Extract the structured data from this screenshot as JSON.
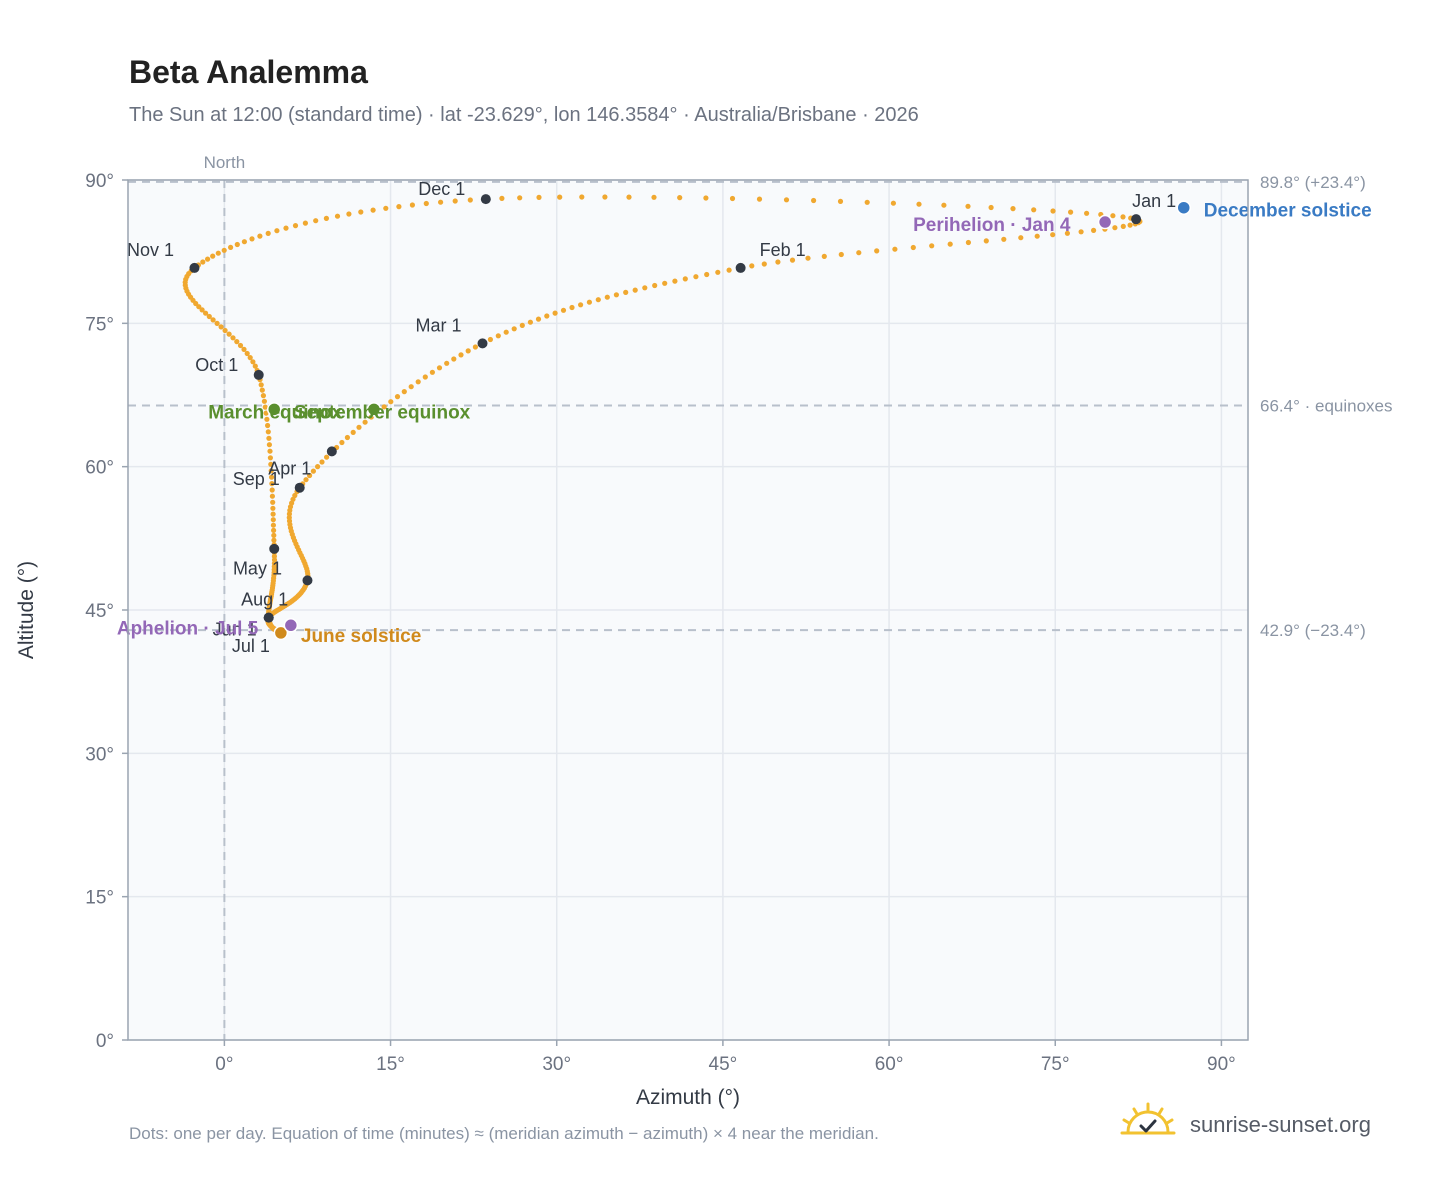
{
  "title": "Beta Analemma",
  "subtitle": "The Sun at 12:00 (standard time) · lat -23.629°, lon 146.3584° · Australia/Brisbane · 2026",
  "footnote": "Dots: one per day. Equation of time (minutes) ≈ (meridian azimuth − azimuth) × 4 near the meridian.",
  "brand": {
    "name": "sunrise-sunset.org",
    "logo_icon": "sun-checkmark-icon"
  },
  "colors": {
    "path": "#f0a830",
    "month_marker": "#333a45",
    "equinox": "#5a8f2e",
    "june_solstice": "#d08a1c",
    "december_solstice": "#3a7bc4",
    "apsis": "#9368b7",
    "reference_line": "#b8c0cb",
    "plot_background": "#f8fafc"
  },
  "chart_data": {
    "type": "scatter",
    "title": "Beta Analemma",
    "xlabel": "Azimuth (°)",
    "ylabel": "Altitude (°)",
    "xlim": [
      -8.7,
      92.4
    ],
    "ylim": [
      0,
      90
    ],
    "x_ticks": [
      0,
      15,
      30,
      45,
      60,
      75,
      90
    ],
    "x_tick_labels": [
      "0°",
      "15°",
      "30°",
      "45°",
      "60°",
      "75°",
      "90°"
    ],
    "y_ticks": [
      0,
      15,
      30,
      45,
      60,
      75,
      90
    ],
    "y_tick_labels": [
      "0°",
      "15°",
      "30°",
      "45°",
      "60°",
      "75°",
      "90°"
    ],
    "grid": true,
    "meridian": {
      "azimuth": 0,
      "label": "North"
    },
    "reference_lines": [
      {
        "altitude": 89.8,
        "label": "89.8° (+23.4°)"
      },
      {
        "altitude": 66.4,
        "label": "66.4° · equinoxes"
      },
      {
        "altitude": 42.9,
        "label": "42.9° (−23.4°)"
      }
    ],
    "months": [
      {
        "label": "Jan 1",
        "azimuth": 82.3,
        "altitude": 85.9
      },
      {
        "label": "Feb 1",
        "azimuth": 46.6,
        "altitude": 80.8
      },
      {
        "label": "Mar 1",
        "azimuth": 23.3,
        "altitude": 72.9
      },
      {
        "label": "Apr 1",
        "azimuth": 6.8,
        "altitude": 57.8
      },
      {
        "label": "May 1",
        "azimuth": 7.5,
        "altitude": 48.1
      },
      {
        "label": "Jun 1",
        "azimuth": 4.0,
        "altitude": 44.2
      },
      {
        "label": "Jul 1",
        "azimuth": 5.1,
        "altitude": 42.7
      },
      {
        "label": "Aug 1",
        "azimuth": 4.0,
        "altitude": 44.2
      },
      {
        "label": "Sep 1",
        "azimuth": 4.5,
        "altitude": 51.4
      },
      {
        "label": "Oct 1",
        "azimuth": 3.1,
        "altitude": 69.6
      },
      {
        "label": "Nov 1",
        "azimuth": -2.7,
        "altitude": 80.8
      },
      {
        "label": "Dec 1",
        "azimuth": 23.6,
        "altitude": 88.0
      }
    ],
    "extra_markers": [
      {
        "azimuth": 9.7,
        "altitude": 61.6
      }
    ],
    "events": [
      {
        "label": "March equinox",
        "azimuth": 4.5,
        "altitude": 66.0,
        "kind": "equinox"
      },
      {
        "label": "September equinox",
        "azimuth": 13.5,
        "altitude": 66.0,
        "kind": "equinox"
      },
      {
        "label": "June solstice",
        "azimuth": 5.1,
        "altitude": 42.6,
        "kind": "june_solstice"
      },
      {
        "label": "December solstice",
        "azimuth": 86.6,
        "altitude": 87.1,
        "kind": "december_solstice"
      },
      {
        "label": "Perihelion · Jan 4",
        "azimuth": 79.5,
        "altitude": 85.6,
        "kind": "apsis"
      },
      {
        "label": "Aphelion · Jul 5",
        "azimuth": 6.0,
        "altitude": 43.4,
        "kind": "apsis"
      }
    ]
  }
}
